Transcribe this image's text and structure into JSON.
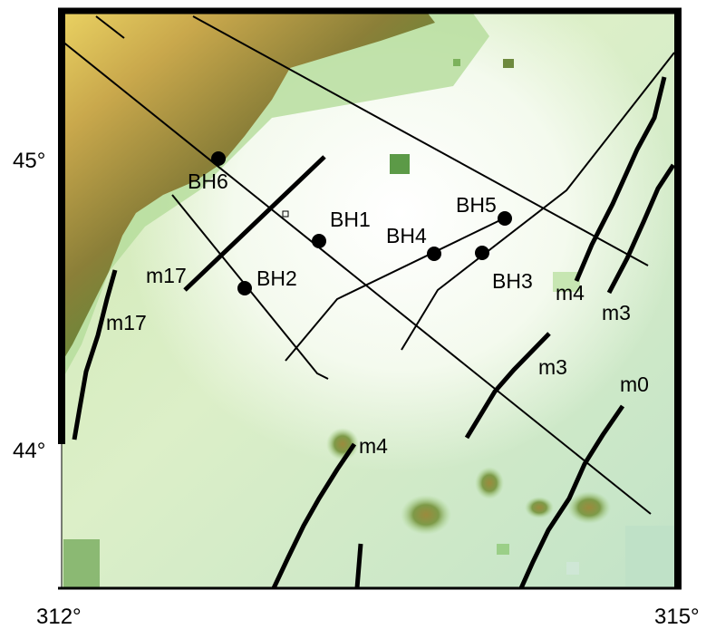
{
  "map": {
    "axes": {
      "x_ticks": [
        "312°",
        "315°"
      ],
      "y_ticks": [
        "45°",
        "44°"
      ]
    },
    "boreholes": [
      {
        "id": "BH6",
        "label": "BH6"
      },
      {
        "id": "BH1",
        "label": "BH1"
      },
      {
        "id": "BH2",
        "label": "BH2"
      },
      {
        "id": "BH4",
        "label": "BH4"
      },
      {
        "id": "BH5",
        "label": "BH5"
      },
      {
        "id": "BH3",
        "label": "BH3"
      }
    ],
    "magnetic_anomalies": [
      {
        "id": "m17-east",
        "label": "m17"
      },
      {
        "id": "m17-west",
        "label": "m17"
      },
      {
        "id": "m4-north",
        "label": "m4"
      },
      {
        "id": "m3-north",
        "label": "m3"
      },
      {
        "id": "m3-south",
        "label": "m3"
      },
      {
        "id": "m0",
        "label": "m0"
      },
      {
        "id": "m4-south",
        "label": "m4"
      }
    ],
    "colors": {
      "land_high": "#e8cd5c",
      "land_mid": "#a3883a",
      "land_low": "#6e7a35",
      "shelf": "#5fa64a",
      "slope": "#a8d58f",
      "deep": "#e4f3d6",
      "abyss": "#f6fbf2",
      "lines": "#000000"
    }
  }
}
